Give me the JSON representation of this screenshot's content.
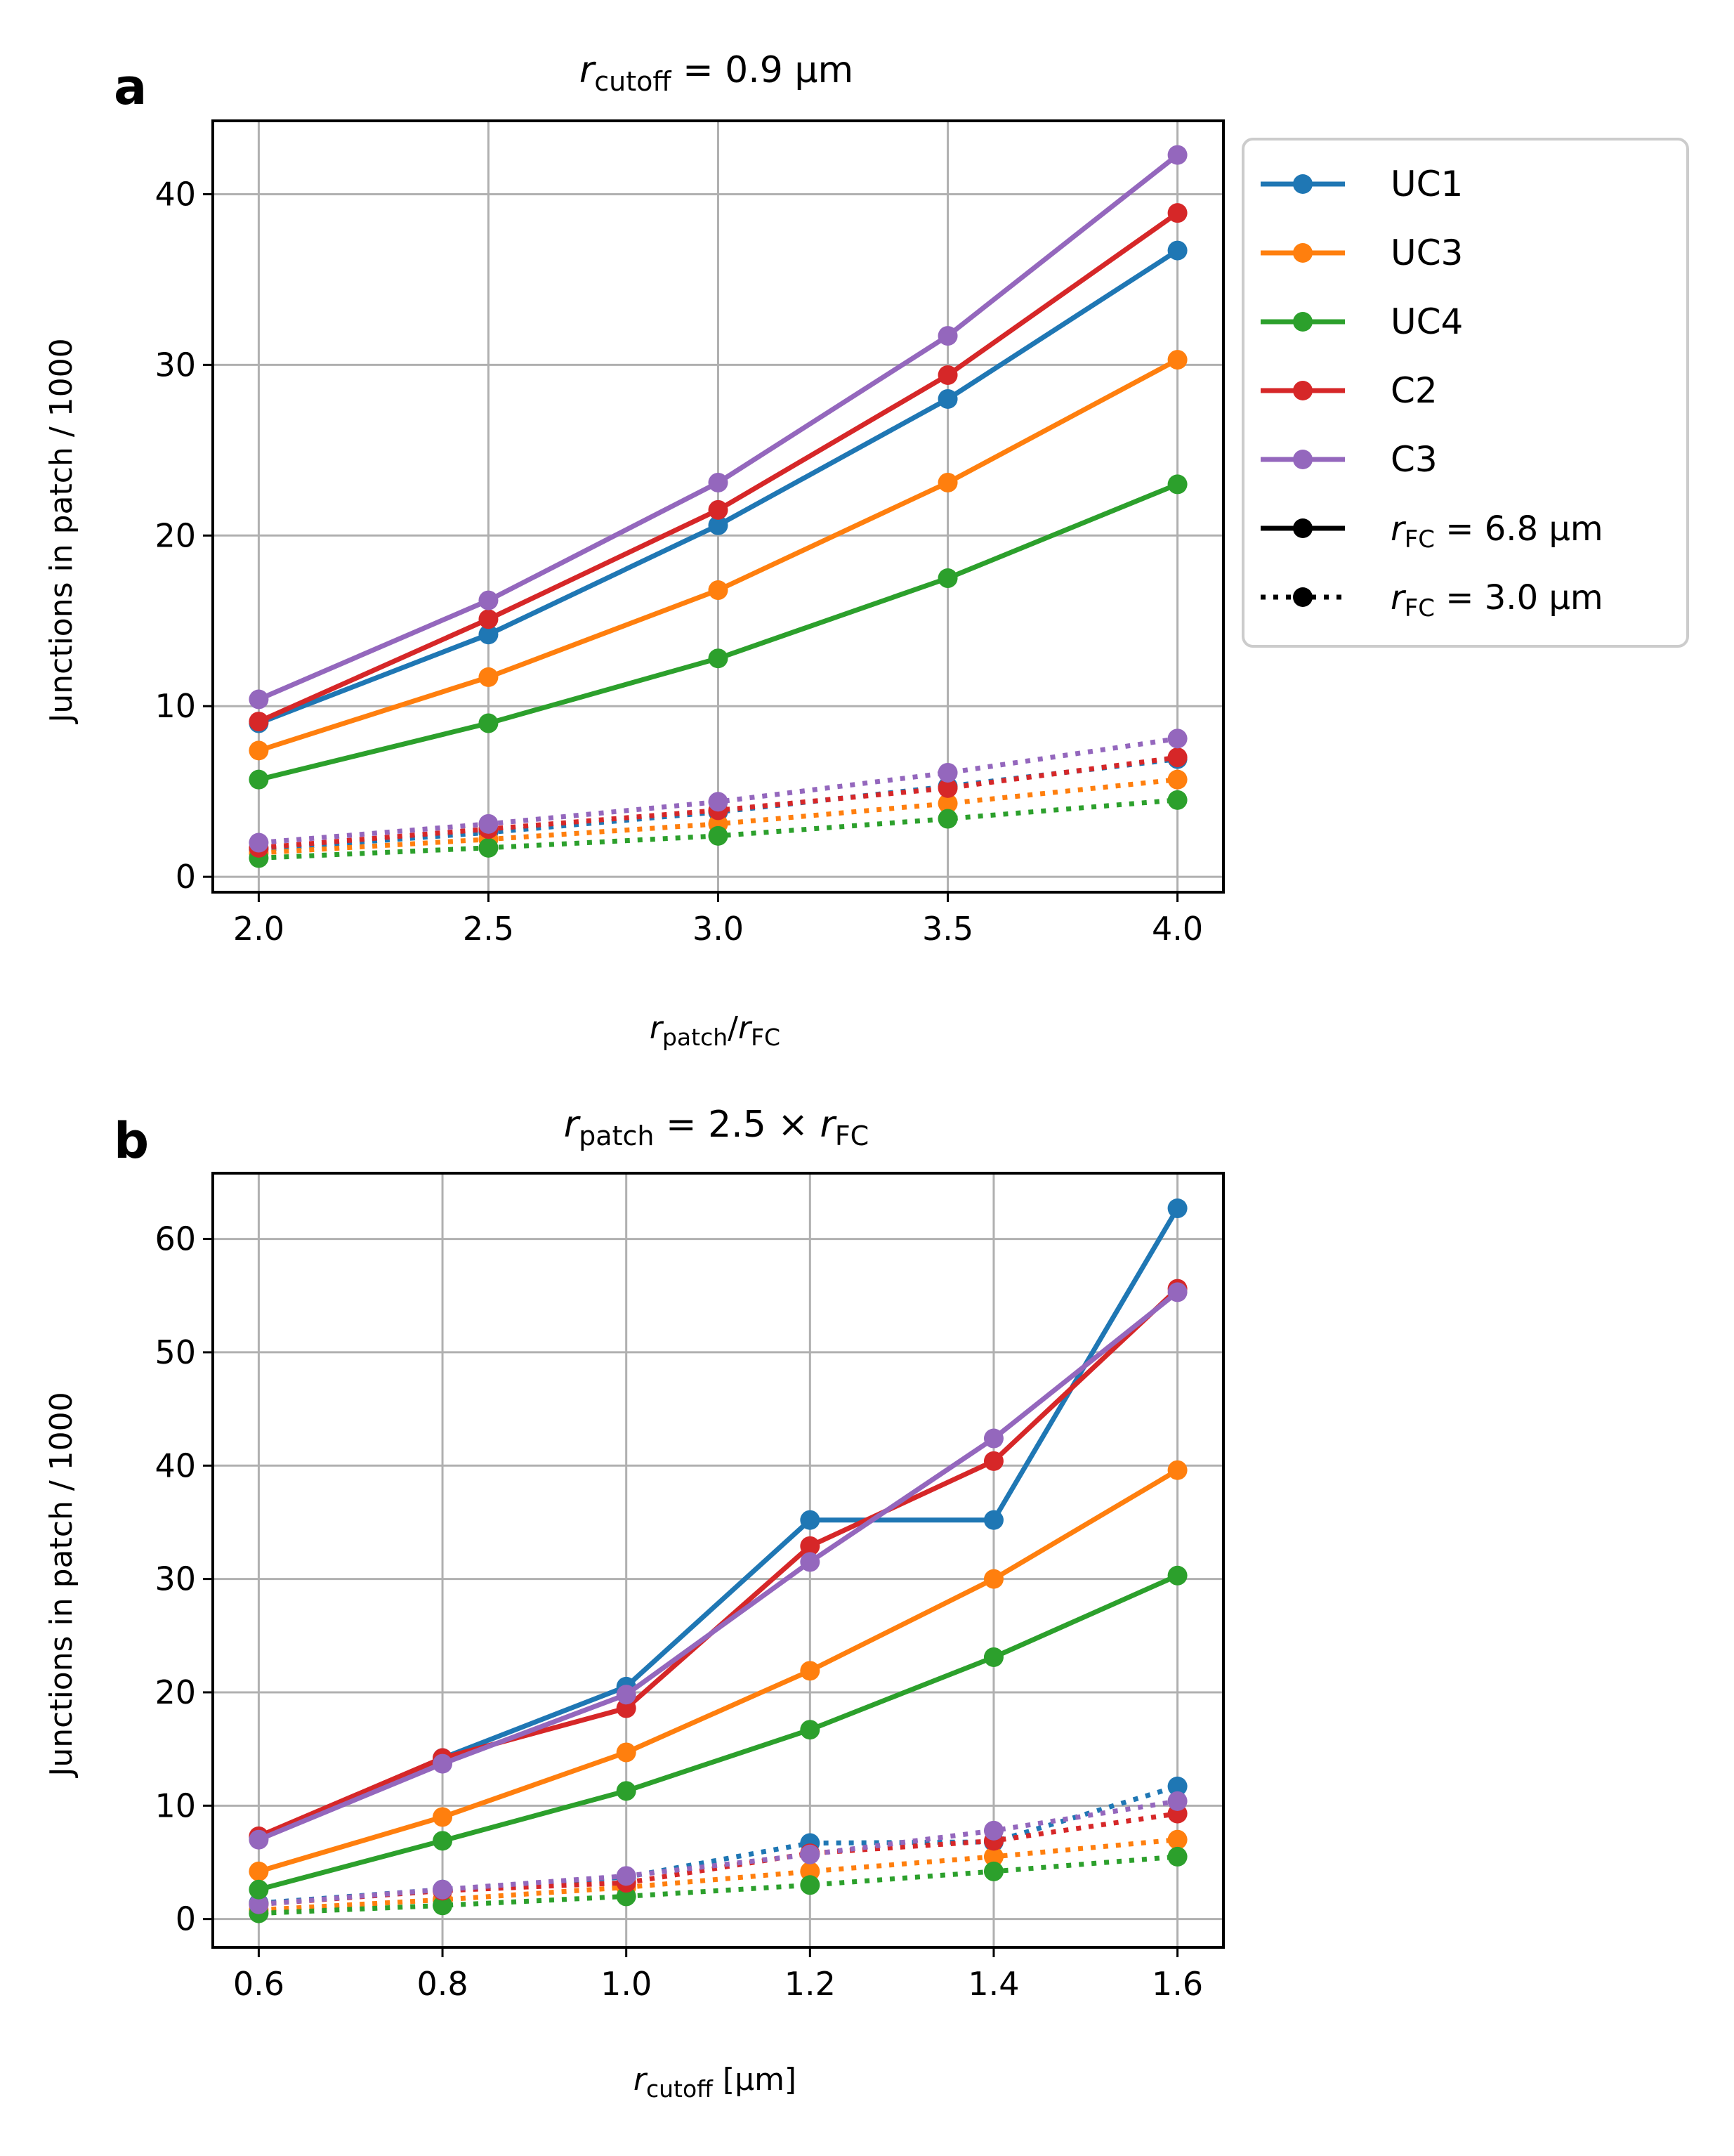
{
  "chart_data": [
    {
      "panel_label": "a",
      "type": "line",
      "title": {
        "var": "r",
        "sub": "cutoff",
        "rest": " = 0.9 μm"
      },
      "xlabel": {
        "a": "r",
        "asub": "patch",
        "slash": "/",
        "b": "r",
        "bsub": "FC"
      },
      "ylabel": "Junctions in patch / 1000",
      "x": [
        2.0,
        2.5,
        3.0,
        3.5,
        4.0
      ],
      "xticks": [
        "2.0",
        "2.5",
        "3.0",
        "3.5",
        "4.0"
      ],
      "yticks": [
        0,
        10,
        20,
        30,
        40
      ],
      "xlim": [
        1.9,
        4.1
      ],
      "ylim": [
        -0.9,
        44.3
      ],
      "grid": true,
      "series": [
        {
          "name": "UC1",
          "color": "#1f77b4",
          "style": "solid",
          "values": [
            9.0,
            14.2,
            20.6,
            28.0,
            36.7
          ]
        },
        {
          "name": "UC3",
          "color": "#ff7f0e",
          "style": "solid",
          "values": [
            7.4,
            11.7,
            16.8,
            23.1,
            30.3
          ]
        },
        {
          "name": "UC4",
          "color": "#2ca02c",
          "style": "solid",
          "values": [
            5.7,
            9.0,
            12.8,
            17.5,
            23.0
          ]
        },
        {
          "name": "C2",
          "color": "#d62728",
          "style": "solid",
          "values": [
            9.1,
            15.1,
            21.5,
            29.4,
            38.9
          ]
        },
        {
          "name": "C3",
          "color": "#9467bd",
          "style": "solid",
          "values": [
            10.4,
            16.2,
            23.1,
            31.7,
            42.3
          ]
        },
        {
          "name": "UC1",
          "color": "#1f77b4",
          "style": "dotted",
          "values": [
            1.6,
            2.6,
            3.8,
            5.3,
            6.9
          ]
        },
        {
          "name": "UC3",
          "color": "#ff7f0e",
          "style": "dotted",
          "values": [
            1.4,
            2.2,
            3.1,
            4.3,
            5.7
          ]
        },
        {
          "name": "UC4",
          "color": "#2ca02c",
          "style": "dotted",
          "values": [
            1.1,
            1.7,
            2.4,
            3.4,
            4.5
          ]
        },
        {
          "name": "C2",
          "color": "#d62728",
          "style": "dotted",
          "values": [
            1.7,
            2.8,
            3.9,
            5.2,
            7.0
          ]
        },
        {
          "name": "C3",
          "color": "#9467bd",
          "style": "dotted",
          "values": [
            2.0,
            3.1,
            4.4,
            6.1,
            8.1
          ]
        }
      ]
    },
    {
      "panel_label": "b",
      "type": "line",
      "title": {
        "var": "r",
        "sub": "patch",
        "rest": " = 2.5 × ",
        "var2": "r",
        "sub2": "FC"
      },
      "xlabel": {
        "a": "r",
        "asub": "cutoff",
        "rest": " [μm]"
      },
      "ylabel": "Junctions in patch / 1000",
      "x": [
        0.6,
        0.8,
        1.0,
        1.2,
        1.4,
        1.6
      ],
      "xticks": [
        "0.6",
        "0.8",
        "1.0",
        "1.2",
        "1.4",
        "1.6"
      ],
      "yticks": [
        0,
        10,
        20,
        30,
        40,
        50,
        60
      ],
      "xlim": [
        0.55,
        1.65
      ],
      "ylim": [
        -2.5,
        65.8
      ],
      "grid": true,
      "series": [
        {
          "name": "UC1",
          "color": "#1f77b4",
          "style": "solid",
          "values": [
            7.2,
            14.2,
            20.5,
            35.2,
            35.2,
            62.7
          ]
        },
        {
          "name": "UC3",
          "color": "#ff7f0e",
          "style": "solid",
          "values": [
            4.2,
            9.0,
            14.7,
            21.9,
            30.0,
            39.6
          ]
        },
        {
          "name": "UC4",
          "color": "#2ca02c",
          "style": "solid",
          "values": [
            2.6,
            6.9,
            11.3,
            16.7,
            23.1,
            30.3
          ]
        },
        {
          "name": "C2",
          "color": "#d62728",
          "style": "solid",
          "values": [
            7.3,
            14.2,
            18.6,
            32.9,
            40.4,
            55.6
          ]
        },
        {
          "name": "C3",
          "color": "#9467bd",
          "style": "solid",
          "values": [
            7.0,
            13.7,
            19.8,
            31.5,
            42.4,
            55.3
          ]
        },
        {
          "name": "UC1",
          "color": "#1f77b4",
          "style": "dotted",
          "values": [
            1.4,
            2.6,
            3.7,
            6.7,
            6.8,
            11.7
          ]
        },
        {
          "name": "UC3",
          "color": "#ff7f0e",
          "style": "dotted",
          "values": [
            0.8,
            1.7,
            2.8,
            4.2,
            5.5,
            7.0
          ]
        },
        {
          "name": "UC4",
          "color": "#2ca02c",
          "style": "dotted",
          "values": [
            0.5,
            1.2,
            2.0,
            3.0,
            4.2,
            5.5
          ]
        },
        {
          "name": "C2",
          "color": "#d62728",
          "style": "dotted",
          "values": [
            1.3,
            2.5,
            3.2,
            5.8,
            6.9,
            9.3
          ]
        },
        {
          "name": "C3",
          "color": "#9467bd",
          "style": "dotted",
          "values": [
            1.3,
            2.6,
            3.8,
            5.7,
            7.8,
            10.4
          ]
        }
      ]
    }
  ],
  "legend": {
    "entries": [
      {
        "label": "UC1",
        "color": "#1f77b4"
      },
      {
        "label": "UC3",
        "color": "#ff7f0e"
      },
      {
        "label": "UC4",
        "color": "#2ca02c"
      },
      {
        "label": "C2",
        "color": "#d62728"
      },
      {
        "label": "C3",
        "color": "#9467bd"
      }
    ],
    "style_entries": [
      {
        "style": "solid",
        "var": "r",
        "sub": "FC",
        "rest": " = 6.8 μm"
      },
      {
        "style": "dotted",
        "var": "r",
        "sub": "FC",
        "rest": " = 3.0 μm"
      }
    ],
    "placement": "right of panel a"
  }
}
